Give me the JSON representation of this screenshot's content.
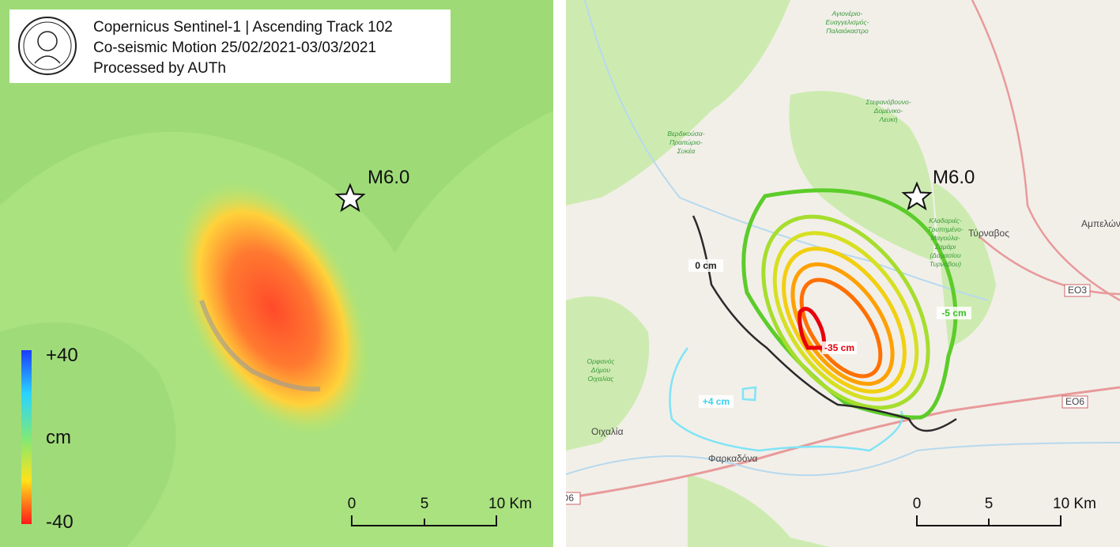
{
  "left_panel": {
    "header": {
      "lines": [
        "Copernicus Sentinel-1 | Ascending Track 102",
        "Co-seismic Motion 25/02/2021-03/03/2021",
        "Processed by AUTh"
      ]
    },
    "epicenter_label": "M6.0",
    "legend": {
      "max": "+40",
      "unit": "cm",
      "min": "-40"
    },
    "scale_bar": {
      "labels": [
        "0",
        "5",
        "10 Km"
      ]
    }
  },
  "right_panel": {
    "epicenter_label": "M6.0",
    "contour_labels": [
      "0 cm",
      "-5 cm",
      "-35 cm",
      "+4 cm"
    ],
    "places": [
      "Τύρναβος",
      "Αμπελών",
      "Οιχαλία",
      "Φαρκαδόνα"
    ],
    "roads": [
      "ΕΟ3",
      "ΕΟ6",
      "Ο6"
    ],
    "districts": [
      [
        "Αγιονέριο-",
        "Ευαγγελισμός-",
        "Παλαιόκαστρο"
      ],
      [
        "Στεφανόβουνο-",
        "Δομένικο-",
        "Λευκή"
      ],
      [
        "Βερδικούσα-",
        "Πραιτώριο-",
        "Συκέα"
      ],
      [
        "Ορφανός",
        "Δήμου",
        "Οιχαλίας"
      ],
      [
        "Κλαδαριές-",
        "Τρυπημένο-",
        "Μαγούλα-",
        "Σαμάρι",
        "(Δαμασίου",
        "Τυρνάβου)"
      ]
    ],
    "scale_bar": {
      "labels": [
        "0",
        "5",
        "10 Km"
      ]
    }
  }
}
